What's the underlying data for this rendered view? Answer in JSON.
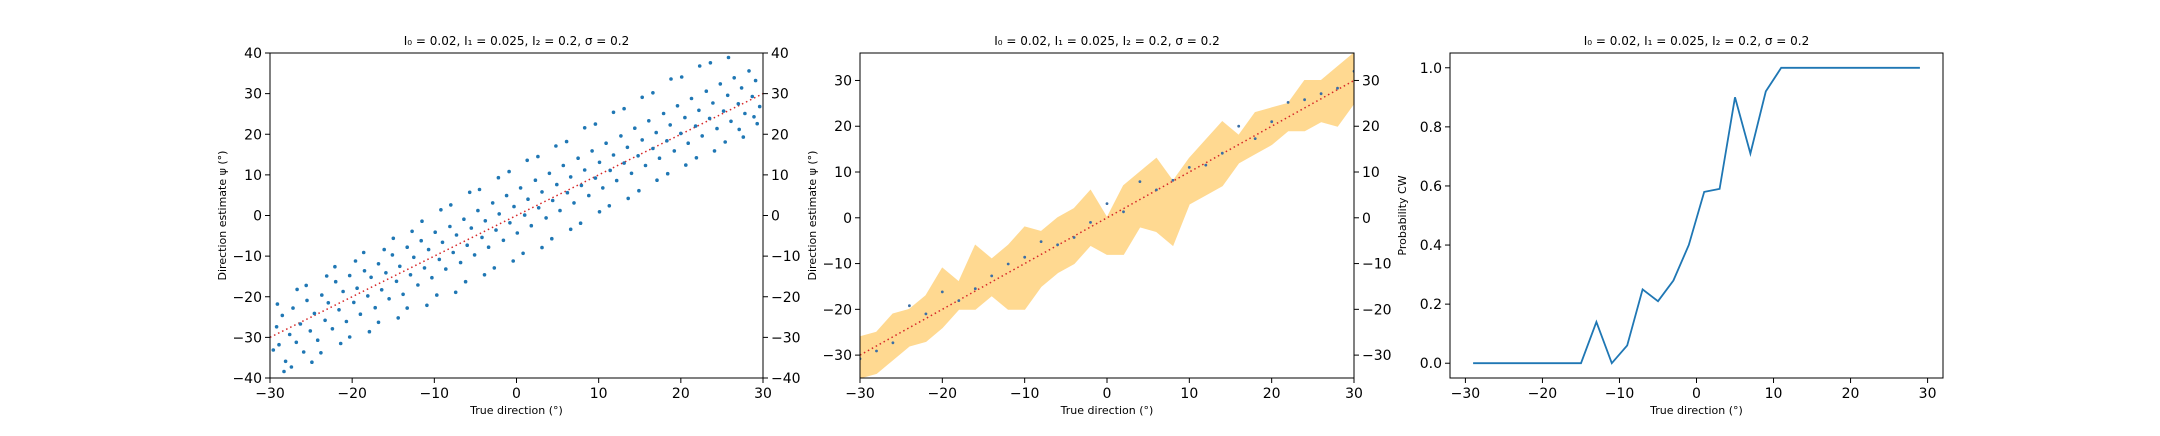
{
  "chart_data": [
    {
      "type": "scatter",
      "title": "$I_0=0.02$, $I_1=0.025$, $I_2=0.2$, $\\sigma=0.2$",
      "title_display": "I₀ = 0.02, I₁ = 0.025, I₂ = 0.2, σ = 0.2",
      "xlabel": "True direction (°)",
      "ylabel": "Direction estimate ψ (°)",
      "xlim": [
        -30,
        30
      ],
      "ylim": [
        -40,
        40
      ],
      "xticks": [
        -30,
        -20,
        -10,
        0,
        10,
        20,
        30
      ],
      "xtick_labels": [
        "−30",
        "−20",
        "−10",
        "0",
        "10",
        "20",
        "30"
      ],
      "yticks": [
        -40,
        -30,
        -20,
        -10,
        0,
        10,
        20,
        30,
        40
      ],
      "ytick_labels": [
        "−40",
        "−30",
        "−20",
        "−10",
        "0",
        "10",
        "20",
        "30",
        "40"
      ],
      "right_axis_ticks": [
        -40,
        -30,
        -20,
        -10,
        0,
        10,
        20,
        30,
        40
      ],
      "right_axis_tick_labels": [
        "−40",
        "−30",
        "−20",
        "−10",
        "0",
        "10",
        "20",
        "30",
        "40"
      ],
      "grid": false,
      "reference_line": {
        "x": [
          -30,
          30
        ],
        "y": [
          -30,
          30
        ],
        "color": "#d62728",
        "style": "dotted"
      },
      "point_color": "#1f77b4",
      "points": [
        [
          -29.6,
          -33.1
        ],
        [
          -29.2,
          -27.4
        ],
        [
          -28.9,
          -31.8
        ],
        [
          -28.5,
          -24.6
        ],
        [
          -28.1,
          -35.9
        ],
        [
          -27.6,
          -29.3
        ],
        [
          -27.2,
          -22.8
        ],
        [
          -26.8,
          -31.2
        ],
        [
          -26.3,
          -26.7
        ],
        [
          -25.9,
          -33.6
        ],
        [
          -25.5,
          -20.9
        ],
        [
          -25.1,
          -28.4
        ],
        [
          -24.6,
          -24.1
        ],
        [
          -24.2,
          -30.7
        ],
        [
          -23.7,
          -19.6
        ],
        [
          -23.3,
          -25.8
        ],
        [
          -22.9,
          -21.5
        ],
        [
          -22.4,
          -27.9
        ],
        [
          -22.0,
          -16.3
        ],
        [
          -21.6,
          -23.2
        ],
        [
          -21.1,
          -18.7
        ],
        [
          -20.7,
          -26.1
        ],
        [
          -20.3,
          -14.8
        ],
        [
          -19.8,
          -21.4
        ],
        [
          -19.4,
          -17.9
        ],
        [
          -19.0,
          -24.3
        ],
        [
          -18.5,
          -13.6
        ],
        [
          -18.1,
          -19.8
        ],
        [
          -17.7,
          -15.2
        ],
        [
          -17.2,
          -22.7
        ],
        [
          -16.8,
          -11.9
        ],
        [
          -16.4,
          -18.3
        ],
        [
          -15.9,
          -14.1
        ],
        [
          -15.5,
          -20.5
        ],
        [
          -15.1,
          -9.7
        ],
        [
          -14.6,
          -16.2
        ],
        [
          -14.2,
          -12.5
        ],
        [
          -13.8,
          -19.4
        ],
        [
          -13.3,
          -7.8
        ],
        [
          -12.9,
          -14.6
        ],
        [
          -12.5,
          -10.3
        ],
        [
          -12.0,
          -17.1
        ],
        [
          -11.6,
          -6.2
        ],
        [
          -11.2,
          -12.9
        ],
        [
          -10.7,
          -8.4
        ],
        [
          -10.3,
          -15.3
        ],
        [
          -9.9,
          -4.1
        ],
        [
          -9.4,
          -10.8
        ],
        [
          -9.0,
          -6.6
        ],
        [
          -8.6,
          -13.2
        ],
        [
          -8.1,
          -2.7
        ],
        [
          -7.7,
          -9.1
        ],
        [
          -7.3,
          -4.8
        ],
        [
          -6.8,
          -11.6
        ],
        [
          -6.4,
          -0.9
        ],
        [
          -6.0,
          -7.3
        ],
        [
          -5.5,
          -3.1
        ],
        [
          -5.1,
          -9.7
        ],
        [
          -4.7,
          1.2
        ],
        [
          -4.2,
          -5.4
        ],
        [
          -3.8,
          -1.3
        ],
        [
          -3.4,
          -7.8
        ],
        [
          -2.9,
          3.1
        ],
        [
          -2.5,
          -3.6
        ],
        [
          -2.1,
          0.4
        ],
        [
          -1.6,
          -6.1
        ],
        [
          -1.2,
          4.9
        ],
        [
          -0.8,
          -1.8
        ],
        [
          -0.3,
          2.2
        ],
        [
          0.1,
          -4.3
        ],
        [
          0.5,
          6.8
        ],
        [
          1.0,
          0.1
        ],
        [
          1.4,
          4.0
        ],
        [
          1.8,
          -2.5
        ],
        [
          2.3,
          8.7
        ],
        [
          2.7,
          1.9
        ],
        [
          3.1,
          5.8
        ],
        [
          3.6,
          -0.6
        ],
        [
          4.0,
          10.4
        ],
        [
          4.4,
          3.7
        ],
        [
          4.9,
          7.6
        ],
        [
          5.3,
          1.2
        ],
        [
          5.7,
          12.3
        ],
        [
          6.2,
          5.6
        ],
        [
          6.6,
          9.5
        ],
        [
          7.0,
          3.1
        ],
        [
          7.5,
          14.1
        ],
        [
          7.9,
          7.4
        ],
        [
          8.3,
          11.2
        ],
        [
          8.8,
          4.9
        ],
        [
          9.2,
          15.9
        ],
        [
          9.6,
          9.2
        ],
        [
          10.1,
          13.1
        ],
        [
          10.5,
          6.8
        ],
        [
          10.9,
          17.8
        ],
        [
          11.4,
          11.1
        ],
        [
          11.8,
          14.9
        ],
        [
          12.2,
          8.6
        ],
        [
          12.7,
          19.6
        ],
        [
          13.1,
          12.9
        ],
        [
          13.5,
          16.8
        ],
        [
          14.0,
          10.4
        ],
        [
          14.4,
          21.5
        ],
        [
          14.8,
          14.7
        ],
        [
          15.3,
          18.6
        ],
        [
          15.7,
          12.3
        ],
        [
          16.1,
          23.3
        ],
        [
          16.6,
          16.5
        ],
        [
          17.0,
          20.4
        ],
        [
          17.4,
          14.1
        ],
        [
          17.9,
          25.1
        ],
        [
          18.3,
          18.4
        ],
        [
          18.7,
          22.3
        ],
        [
          19.2,
          15.9
        ],
        [
          19.6,
          27.0
        ],
        [
          20.0,
          20.2
        ],
        [
          20.5,
          24.1
        ],
        [
          20.9,
          17.8
        ],
        [
          21.3,
          28.8
        ],
        [
          21.8,
          22.0
        ],
        [
          22.2,
          25.9
        ],
        [
          22.6,
          19.6
        ],
        [
          23.1,
          30.6
        ],
        [
          23.5,
          23.9
        ],
        [
          23.9,
          27.7
        ],
        [
          24.4,
          21.4
        ],
        [
          24.8,
          32.4
        ],
        [
          25.2,
          25.7
        ],
        [
          25.7,
          29.6
        ],
        [
          26.1,
          23.2
        ],
        [
          26.5,
          33.9
        ],
        [
          27.0,
          27.5
        ],
        [
          27.4,
          31.4
        ],
        [
          27.8,
          25.1
        ],
        [
          28.3,
          35.6
        ],
        [
          28.7,
          29.3
        ],
        [
          29.1,
          33.2
        ],
        [
          29.6,
          26.8
        ],
        [
          -28.3,
          -38.4
        ],
        [
          -26.7,
          -18.2
        ],
        [
          -24.9,
          -36.1
        ],
        [
          -23.1,
          -14.9
        ],
        [
          -21.4,
          -31.5
        ],
        [
          -19.6,
          -11.2
        ],
        [
          -17.9,
          -28.6
        ],
        [
          -16.1,
          -8.4
        ],
        [
          -14.4,
          -25.2
        ],
        [
          -12.7,
          -3.9
        ],
        [
          -10.9,
          -22.1
        ],
        [
          -9.2,
          1.4
        ],
        [
          -7.4,
          -18.9
        ],
        [
          -5.7,
          5.7
        ],
        [
          -3.9,
          -14.6
        ],
        [
          -2.2,
          9.3
        ],
        [
          -0.4,
          -11.2
        ],
        [
          1.3,
          13.6
        ],
        [
          3.1,
          -7.9
        ],
        [
          4.8,
          17.1
        ],
        [
          6.6,
          -3.4
        ],
        [
          8.3,
          21.6
        ],
        [
          10.1,
          0.9
        ],
        [
          11.8,
          25.4
        ],
        [
          13.6,
          4.2
        ],
        [
          15.3,
          29.1
        ],
        [
          17.1,
          8.7
        ],
        [
          18.8,
          33.6
        ],
        [
          20.6,
          12.4
        ],
        [
          22.3,
          36.8
        ],
        [
          24.1,
          15.9
        ],
        [
          25.8,
          38.9
        ],
        [
          27.6,
          19.3
        ],
        [
          29.3,
          22.6
        ],
        [
          -29.1,
          -21.8
        ],
        [
          -27.4,
          -37.3
        ],
        [
          -25.6,
          -17.2
        ],
        [
          -23.8,
          -33.8
        ],
        [
          -22.1,
          -12.6
        ],
        [
          -20.3,
          -29.9
        ],
        [
          -18.6,
          -9.1
        ],
        [
          -16.8,
          -26.3
        ],
        [
          -15.0,
          -5.6
        ],
        [
          -13.3,
          -22.8
        ],
        [
          -11.5,
          -1.4
        ],
        [
          -9.7,
          -19.6
        ],
        [
          -8.0,
          2.6
        ],
        [
          -6.2,
          -16.3
        ],
        [
          -4.5,
          6.4
        ],
        [
          -2.7,
          -12.9
        ],
        [
          -0.9,
          10.8
        ],
        [
          0.8,
          -9.3
        ],
        [
          2.6,
          14.5
        ],
        [
          4.3,
          -5.7
        ],
        [
          6.1,
          18.2
        ],
        [
          7.8,
          -1.9
        ],
        [
          9.6,
          22.5
        ],
        [
          11.3,
          2.4
        ],
        [
          13.1,
          26.3
        ],
        [
          14.9,
          6.1
        ],
        [
          16.6,
          30.2
        ],
        [
          18.4,
          10.3
        ],
        [
          20.1,
          34.1
        ],
        [
          21.9,
          14.2
        ],
        [
          23.6,
          37.6
        ],
        [
          25.4,
          18.1
        ],
        [
          27.1,
          21.2
        ],
        [
          28.9,
          24.3
        ]
      ]
    },
    {
      "type": "line",
      "title": "$I_0=0.02$, $I_1=0.025$, $I_2=0.2$, $\\sigma=0.2$",
      "title_display": "I₀ = 0.02, I₁ = 0.025, I₂ = 0.2, σ = 0.2",
      "xlabel": "True direction (°)",
      "ylabel": "Direction estimate ψ (°)",
      "xlim": [
        -30,
        30
      ],
      "ylim": [
        -35,
        36
      ],
      "xticks": [
        -30,
        -20,
        -10,
        0,
        10,
        20,
        30
      ],
      "xtick_labels": [
        "−30",
        "−20",
        "−10",
        "0",
        "10",
        "20",
        "30"
      ],
      "yticks": [
        -30,
        -20,
        -10,
        0,
        10,
        20,
        30
      ],
      "ytick_labels": [
        "−30",
        "−20",
        "−10",
        "0",
        "10",
        "20",
        "30"
      ],
      "right_axis_ticks": [
        -30,
        -20,
        -10,
        0,
        10,
        20,
        30
      ],
      "right_axis_tick_labels": [
        "−30",
        "−20",
        "−10",
        "0",
        "10",
        "20",
        "30"
      ],
      "grid": false,
      "band_color": "#ffd991",
      "point_color": "#3a6ea5",
      "reference_line": {
        "x": [
          -30,
          30
        ],
        "y": [
          -30,
          30
        ],
        "color": "#d62728",
        "style": "dotted"
      },
      "x": [
        -30,
        -28,
        -26,
        -24,
        -22,
        -20,
        -18,
        -16,
        -14,
        -12,
        -10,
        -8,
        -6,
        -4,
        -2,
        0,
        2,
        4,
        6,
        8,
        10,
        12,
        14,
        16,
        18,
        20,
        22,
        24,
        26,
        28,
        30
      ],
      "band_upper": [
        -26,
        -25,
        -21,
        -20,
        -17,
        -11,
        -14,
        -6,
        -9,
        -6,
        -2,
        -3,
        0,
        2,
        6,
        0,
        7,
        10,
        13,
        8,
        13,
        17,
        21,
        18,
        23,
        24,
        25,
        30,
        30,
        33,
        36
      ],
      "band_lower": [
        -35,
        -34,
        -31,
        -28,
        -27,
        -24,
        -20,
        -20,
        -17,
        -20,
        -20,
        -15,
        -12,
        -10,
        -6,
        -8,
        -8,
        -2,
        -3,
        -6,
        3,
        5,
        7,
        12,
        14,
        16,
        19,
        19,
        21,
        20,
        25
      ],
      "mean_points": [
        [
          -30,
          -30.8
        ],
        [
          -28,
          -29.1
        ],
        [
          -26,
          -27.3
        ],
        [
          -24,
          -19.2
        ],
        [
          -22,
          -21.0
        ],
        [
          -20,
          -16.2
        ],
        [
          -18,
          -18.1
        ],
        [
          -16,
          -15.5
        ],
        [
          -14,
          -12.7
        ],
        [
          -12,
          -10.1
        ],
        [
          -10,
          -8.6
        ],
        [
          -8,
          -5.2
        ],
        [
          -6,
          -5.9
        ],
        [
          -4,
          -4.3
        ],
        [
          -2,
          -1.0
        ],
        [
          0,
          3.1
        ],
        [
          2,
          1.3
        ],
        [
          4,
          7.9
        ],
        [
          6,
          6.1
        ],
        [
          8,
          8.2
        ],
        [
          10,
          11.0
        ],
        [
          12,
          11.5
        ],
        [
          14,
          14.1
        ],
        [
          16,
          20.0
        ],
        [
          18,
          17.3
        ],
        [
          20,
          21.0
        ],
        [
          22,
          25.2
        ],
        [
          24,
          25.8
        ],
        [
          26,
          27.1
        ],
        [
          28,
          28.3
        ],
        [
          30,
          32.0
        ]
      ]
    },
    {
      "type": "line",
      "title": "$I_0=0.02$, $I_1=0.025$, $I_2=0.2$, $\\sigma=0.2$",
      "title_display": "I₀ = 0.02, I₁ = 0.025, I₂ = 0.2, σ = 0.2",
      "xlabel": "True direction (°)",
      "ylabel": "Probability CW",
      "xlim": [
        -32,
        32
      ],
      "ylim": [
        -0.05,
        1.05
      ],
      "xticks": [
        -30,
        -20,
        -10,
        0,
        10,
        20,
        30
      ],
      "xtick_labels": [
        "−30",
        "−20",
        "−10",
        "0",
        "10",
        "20",
        "30"
      ],
      "yticks": [
        0,
        0.2,
        0.4,
        0.6,
        0.8,
        1.0
      ],
      "ytick_labels": [
        "0.0",
        "0.2",
        "0.4",
        "0.6",
        "0.8",
        "1.0"
      ],
      "grid": false,
      "line_color": "#1f77b4",
      "series": [
        {
          "x": [
            -29,
            -27,
            -25,
            -23,
            -21,
            -19,
            -17,
            -15,
            -13,
            -11,
            -9,
            -7,
            -5,
            -3,
            -1,
            1,
            3,
            5,
            7,
            9,
            11,
            13,
            15,
            17,
            19,
            21,
            23,
            25,
            27,
            29
          ],
          "values": [
            0,
            0,
            0,
            0,
            0,
            0,
            0,
            0,
            0.14,
            0,
            0.06,
            0.25,
            0.21,
            0.28,
            0.4,
            0.58,
            0.59,
            0.9,
            0.71,
            0.92,
            1,
            1,
            1,
            1,
            1,
            1,
            1,
            1,
            1,
            1
          ]
        }
      ]
    }
  ]
}
